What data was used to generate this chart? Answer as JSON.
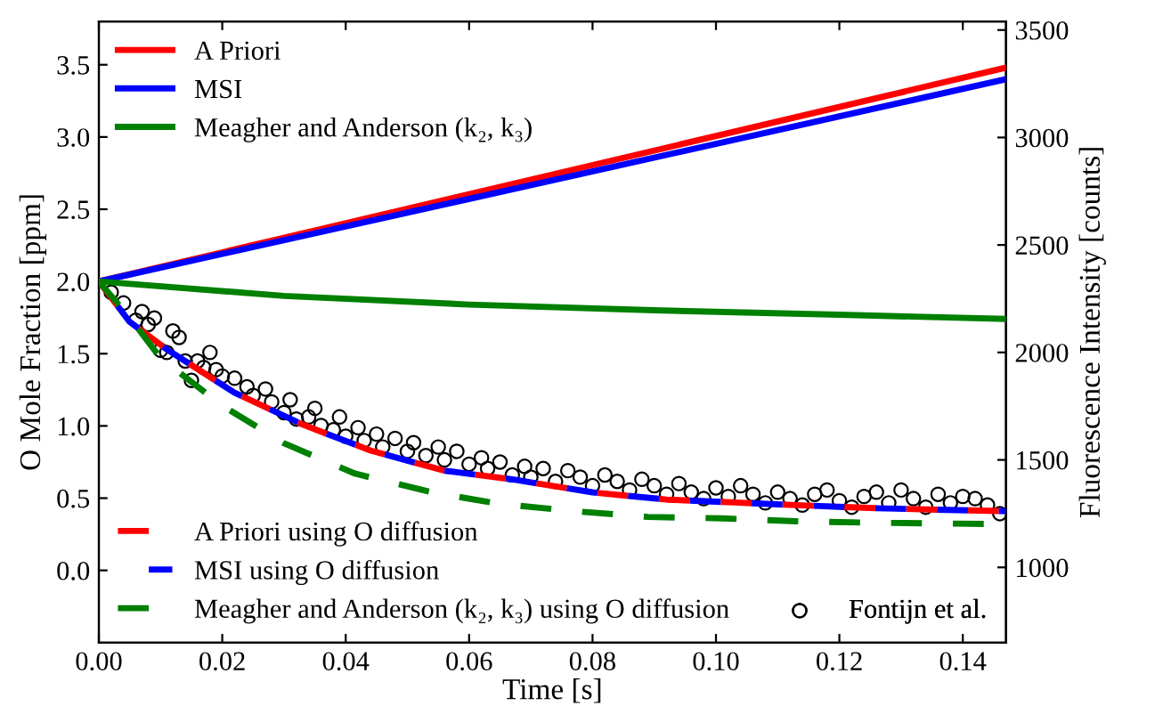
{
  "chart_data": {
    "type": "line",
    "xlabel": "Time [s]",
    "ylabel": "O Mole Fraction [ppm]",
    "y2label": "Fluorescence Intensity [counts]",
    "xlim": [
      0,
      0.147
    ],
    "ylim": [
      -0.5,
      3.8
    ],
    "y2lim": [
      650,
      3540
    ],
    "xticks": [
      {
        "value": 0,
        "label": "0.00"
      },
      {
        "value": 0.02,
        "label": "0.02"
      },
      {
        "value": 0.04,
        "label": "0.04"
      },
      {
        "value": 0.06,
        "label": "0.06"
      },
      {
        "value": 0.08,
        "label": "0.08"
      },
      {
        "value": 0.1,
        "label": "0.10"
      },
      {
        "value": 0.12,
        "label": "0.12"
      },
      {
        "value": 0.14,
        "label": "0.14"
      }
    ],
    "yticks": [
      {
        "value": 0,
        "label": "0.0"
      },
      {
        "value": 0.5,
        "label": "0.5"
      },
      {
        "value": 1,
        "label": "1.0"
      },
      {
        "value": 1.5,
        "label": "1.5"
      },
      {
        "value": 2,
        "label": "2.0"
      },
      {
        "value": 2.5,
        "label": "2.5"
      },
      {
        "value": 3,
        "label": "3.0"
      },
      {
        "value": 3.5,
        "label": "3.5"
      }
    ],
    "y2ticks": [
      1000,
      1500,
      2000,
      2500,
      3000,
      3500
    ],
    "legend": "left",
    "grid": false,
    "series": [
      {
        "name": "A Priori",
        "color": "#ff0000",
        "line_style": "solid",
        "x": [
          0,
          0.147
        ],
        "values": [
          2.0,
          3.48
        ]
      },
      {
        "name": "MSI",
        "color": "#0000ff",
        "line_style": "solid",
        "x": [
          0,
          0.147
        ],
        "values": [
          2.0,
          3.4
        ]
      },
      {
        "name": "Meagher and Anderson (k₂, k₃)",
        "color": "#008000",
        "line_style": "solid",
        "x": [
          0,
          0.03,
          0.06,
          0.09,
          0.12,
          0.147
        ],
        "values": [
          2.0,
          1.9,
          1.84,
          1.8,
          1.77,
          1.74
        ]
      },
      {
        "name": "A Priori using O diffusion",
        "color": "#ff0000",
        "line_style": "dashed",
        "x": [
          0,
          0.005,
          0.011,
          0.022,
          0.033,
          0.044,
          0.056,
          0.067,
          0.08,
          0.092,
          0.103,
          0.114,
          0.126,
          0.147
        ],
        "values": [
          2.0,
          1.72,
          1.53,
          1.23,
          1.01,
          0.83,
          0.69,
          0.63,
          0.54,
          0.49,
          0.47,
          0.45,
          0.43,
          0.41
        ]
      },
      {
        "name": "MSI using O diffusion",
        "color": "#0000ff",
        "line_style": "dashed",
        "x": [
          0,
          0.005,
          0.011,
          0.022,
          0.033,
          0.044,
          0.056,
          0.067,
          0.08,
          0.092,
          0.103,
          0.114,
          0.126,
          0.147
        ],
        "values": [
          2.0,
          1.72,
          1.53,
          1.23,
          1.01,
          0.83,
          0.69,
          0.63,
          0.54,
          0.49,
          0.47,
          0.45,
          0.43,
          0.41
        ]
      },
      {
        "name": "Meagher and Anderson (k₂, k₃) using O diffusion",
        "color": "#008000",
        "line_style": "dashed",
        "x": [
          0,
          0.005,
          0.01,
          0.02,
          0.03,
          0.0415,
          0.054,
          0.065,
          0.077,
          0.089,
          0.101,
          0.113,
          0.125,
          0.147
        ],
        "values": [
          2.0,
          1.75,
          1.47,
          1.14,
          0.88,
          0.67,
          0.54,
          0.46,
          0.41,
          0.37,
          0.36,
          0.34,
          0.33,
          0.32
        ]
      },
      {
        "name": "Fontijn et al.",
        "type": "scatter",
        "axis": "y2",
        "color": "#000000",
        "marker": "circle",
        "x": [
          0.002,
          0.004,
          0.006,
          0.007,
          0.008,
          0.009,
          0.01,
          0.011,
          0.012,
          0.013,
          0.014,
          0.015,
          0.016,
          0.017,
          0.018,
          0.019,
          0.02,
          0.022,
          0.024,
          0.025,
          0.027,
          0.028,
          0.03,
          0.031,
          0.032,
          0.034,
          0.035,
          0.036,
          0.038,
          0.039,
          0.04,
          0.042,
          0.043,
          0.045,
          0.046,
          0.048,
          0.05,
          0.051,
          0.053,
          0.055,
          0.056,
          0.058,
          0.06,
          0.062,
          0.063,
          0.065,
          0.067,
          0.069,
          0.07,
          0.072,
          0.074,
          0.076,
          0.078,
          0.08,
          0.082,
          0.084,
          0.086,
          0.088,
          0.09,
          0.092,
          0.094,
          0.096,
          0.098,
          0.1,
          0.102,
          0.104,
          0.106,
          0.108,
          0.11,
          0.112,
          0.114,
          0.116,
          0.118,
          0.12,
          0.122,
          0.124,
          0.126,
          0.128,
          0.13,
          0.132,
          0.134,
          0.136,
          0.138,
          0.14,
          0.142,
          0.144,
          0.146
        ],
        "values": [
          2280,
          2230,
          2150,
          2190,
          2130,
          2160,
          2010,
          2000,
          2100,
          2070,
          1960,
          1870,
          1960,
          1930,
          2000,
          1920,
          1890,
          1880,
          1840,
          1800,
          1830,
          1770,
          1720,
          1780,
          1690,
          1700,
          1740,
          1660,
          1640,
          1700,
          1610,
          1650,
          1590,
          1620,
          1560,
          1600,
          1540,
          1580,
          1520,
          1560,
          1500,
          1540,
          1480,
          1510,
          1460,
          1490,
          1430,
          1470,
          1420,
          1460,
          1400,
          1450,
          1420,
          1380,
          1430,
          1400,
          1360,
          1410,
          1380,
          1340,
          1390,
          1350,
          1320,
          1370,
          1330,
          1380,
          1340,
          1300,
          1350,
          1320,
          1290,
          1340,
          1360,
          1310,
          1280,
          1330,
          1350,
          1300,
          1360,
          1320,
          1280,
          1340,
          1300,
          1330,
          1320,
          1290,
          1250
        ]
      }
    ]
  }
}
